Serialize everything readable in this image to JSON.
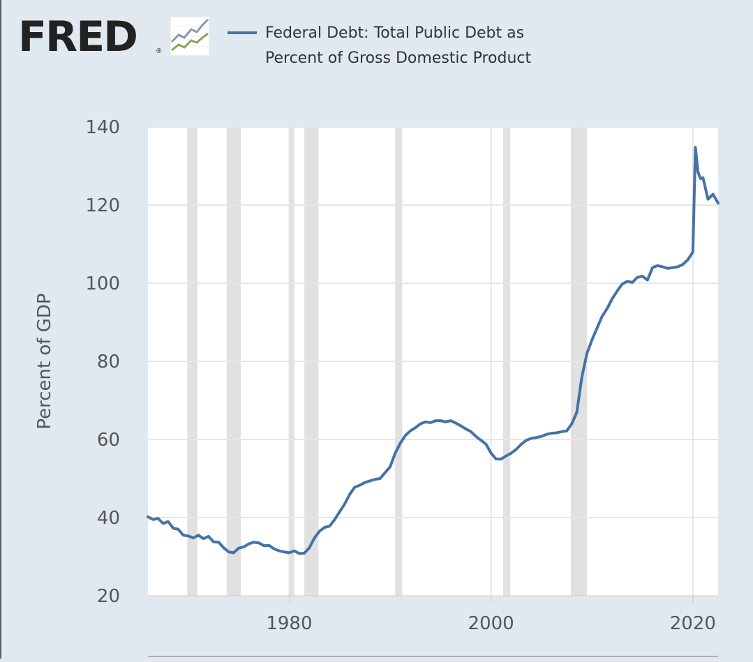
{
  "header": {
    "logo_text": "FRED",
    "logo_reg": "®"
  },
  "legend": {
    "label": "Federal Debt: Total Public Debt as Percent of Gross Domestic Product",
    "color": "#4572a7"
  },
  "colors": {
    "background": "#e1e9f0",
    "plot_background": "#ffffff",
    "recession_band": "#e1e1e1",
    "gridline": "#e6e6e6",
    "line": "#4572a7",
    "axis_text": "#555555"
  },
  "chart_data": {
    "type": "line",
    "ylabel": "Percent of GDP",
    "xlabel": "",
    "title": "",
    "ylim": [
      20,
      140
    ],
    "xlim": [
      1966,
      2022.5
    ],
    "y_ticks": [
      20,
      40,
      60,
      80,
      100,
      120,
      140
    ],
    "x_ticks": [
      1980,
      2000,
      2020
    ],
    "grid": true,
    "legend_position": "top",
    "recessions": [
      [
        1969.9,
        1970.9
      ],
      [
        1973.8,
        1975.2
      ],
      [
        1980.0,
        1980.5
      ],
      [
        1981.5,
        1982.9
      ],
      [
        1990.5,
        1991.2
      ],
      [
        2001.2,
        2001.9
      ],
      [
        2007.9,
        2009.5
      ]
    ],
    "series": [
      {
        "name": "Federal Debt: Total Public Debt as Percent of Gross Domestic Product",
        "x": [
          1966.0,
          1966.5,
          1967.0,
          1967.5,
          1968.0,
          1968.5,
          1969.0,
          1969.5,
          1970.0,
          1970.5,
          1971.0,
          1971.5,
          1972.0,
          1972.5,
          1973.0,
          1973.5,
          1974.0,
          1974.5,
          1975.0,
          1975.5,
          1976.0,
          1976.5,
          1977.0,
          1977.5,
          1978.0,
          1978.5,
          1979.0,
          1979.5,
          1980.0,
          1980.5,
          1981.0,
          1981.5,
          1982.0,
          1982.5,
          1983.0,
          1983.5,
          1984.0,
          1984.5,
          1985.0,
          1985.5,
          1986.0,
          1986.5,
          1987.0,
          1987.5,
          1988.0,
          1988.5,
          1989.0,
          1989.5,
          1990.0,
          1990.5,
          1991.0,
          1991.5,
          1992.0,
          1992.5,
          1993.0,
          1993.5,
          1994.0,
          1994.5,
          1995.0,
          1995.5,
          1996.0,
          1996.5,
          1997.0,
          1997.5,
          1998.0,
          1998.5,
          1999.0,
          1999.5,
          2000.0,
          2000.5,
          2001.0,
          2001.5,
          2002.0,
          2002.5,
          2003.0,
          2003.5,
          2004.0,
          2004.5,
          2005.0,
          2005.5,
          2006.0,
          2006.5,
          2007.0,
          2007.5,
          2008.0,
          2008.5,
          2009.0,
          2009.5,
          2010.0,
          2010.5,
          2011.0,
          2011.5,
          2012.0,
          2012.5,
          2013.0,
          2013.5,
          2014.0,
          2014.5,
          2015.0,
          2015.5,
          2016.0,
          2016.5,
          2017.0,
          2017.5,
          2018.0,
          2018.5,
          2019.0,
          2019.5,
          2020.0,
          2020.25,
          2020.5,
          2020.75,
          2021.0,
          2021.5,
          2022.0,
          2022.5
        ],
        "values": [
          40.2,
          39.5,
          39.8,
          38.5,
          39.0,
          37.3,
          37.0,
          35.5,
          35.3,
          34.8,
          35.5,
          34.6,
          35.2,
          33.8,
          33.7,
          32.3,
          31.2,
          31.0,
          32.2,
          32.5,
          33.3,
          33.7,
          33.5,
          32.8,
          32.9,
          32.0,
          31.5,
          31.2,
          31.0,
          31.5,
          30.8,
          30.9,
          32.3,
          34.8,
          36.5,
          37.5,
          37.8,
          39.5,
          41.5,
          43.5,
          46.0,
          47.8,
          48.3,
          49.0,
          49.4,
          49.8,
          50.0,
          51.5,
          53.0,
          56.5,
          59.0,
          61.0,
          62.2,
          63.0,
          64.0,
          64.5,
          64.3,
          64.8,
          64.8,
          64.5,
          64.8,
          64.2,
          63.5,
          62.7,
          62.0,
          60.8,
          59.8,
          58.8,
          56.5,
          55.0,
          55.0,
          55.8,
          56.5,
          57.5,
          58.8,
          59.8,
          60.3,
          60.5,
          60.8,
          61.3,
          61.6,
          61.7,
          62.0,
          62.2,
          64.0,
          67.0,
          76.0,
          82.0,
          85.5,
          88.5,
          91.5,
          93.5,
          96.0,
          98.0,
          99.8,
          100.5,
          100.2,
          101.5,
          101.8,
          100.8,
          104.0,
          104.5,
          104.2,
          103.8,
          104.0,
          104.2,
          104.8,
          106.0,
          108.0,
          134.8,
          128.5,
          126.8,
          127.0,
          121.5,
          122.8,
          120.5
        ]
      }
    ]
  }
}
